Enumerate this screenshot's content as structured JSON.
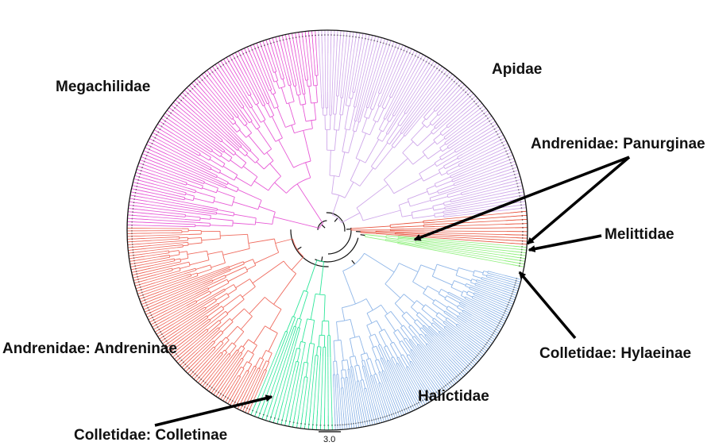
{
  "figure": {
    "clades": [
      {
        "id": "megachilidae",
        "label": "Megachilidae",
        "color": "#e75ad6",
        "tips": 90
      },
      {
        "id": "apidae",
        "label": "Apidae",
        "color": "#cfa8ea",
        "tips": 95
      },
      {
        "id": "panurginae",
        "label": "Andrenidae: Panurginae",
        "color": "#e8553f",
        "tips": 6
      },
      {
        "id": "melittidae",
        "label": "Melittidae",
        "color": "#e8553f",
        "tips": 4
      },
      {
        "id": "hylaeinae",
        "label": "Colletidae: Hylaeinae",
        "color": "#8df07a",
        "tips": 8
      },
      {
        "id": "halictidae",
        "label": "Halictidae",
        "color": "#8fb6e8",
        "tips": 110
      },
      {
        "id": "colletinae",
        "label": "Colletidae: Colletinae",
        "color": "#2ee69a",
        "tips": 22
      },
      {
        "id": "andreninae",
        "label": "Andrenidae: Andreninae",
        "color": "#ef6b5e",
        "tips": 85
      }
    ],
    "scale_bar": {
      "label": "3.0",
      "value": 3.0
    }
  }
}
